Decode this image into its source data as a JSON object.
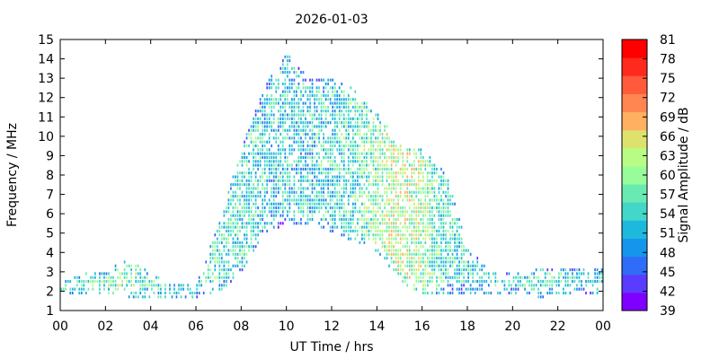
{
  "chart_data": {
    "type": "heatmap",
    "title": "2026-01-03",
    "xlabel": "UT Time / hrs",
    "ylabel": "Frequency / MHz",
    "xlim": [
      0,
      24
    ],
    "ylim": [
      1,
      15
    ],
    "x_ticks": [
      "00",
      "02",
      "04",
      "06",
      "08",
      "10",
      "12",
      "14",
      "16",
      "18",
      "20",
      "22",
      "00"
    ],
    "y_ticks": [
      "1",
      "2",
      "3",
      "4",
      "5",
      "6",
      "7",
      "8",
      "9",
      "10",
      "11",
      "12",
      "13",
      "14",
      "15"
    ],
    "colorbar": {
      "label": "Signal Amplitude / dB",
      "min": 39,
      "max": 81,
      "ticks": [
        "81",
        "78",
        "75",
        "72",
        "69",
        "66",
        "63",
        "60",
        "57",
        "54",
        "51",
        "48",
        "45",
        "42",
        "39"
      ],
      "colors": [
        "#8000ff",
        "#5a3cfe",
        "#2f6df8",
        "#1596ec",
        "#1cb9dd",
        "#42d7c8",
        "#6aeab3",
        "#97fc9a",
        "#b9fc84",
        "#dde26c",
        "#ffb061",
        "#ff8650",
        "#ff5a3c",
        "#ff2a1e",
        "#ff0000"
      ]
    },
    "detection_envelope": {
      "hours": [
        0,
        1,
        2,
        3,
        4,
        5,
        6,
        7,
        8,
        9,
        10,
        11,
        12,
        13,
        14,
        15,
        16,
        17,
        18,
        19,
        20,
        21,
        22,
        23,
        24
      ],
      "min_freq_mhz": [
        1.8,
        1.9,
        1.8,
        1.7,
        1.7,
        1.6,
        1.7,
        2.0,
        3.0,
        5.0,
        5.5,
        5.5,
        5.0,
        4.5,
        4.0,
        2.5,
        1.8,
        1.9,
        1.9,
        1.8,
        1.8,
        1.7,
        1.7,
        1.8,
        1.8
      ],
      "max_freq_mhz": [
        2.5,
        2.9,
        3.0,
        3.6,
        2.8,
        2.2,
        2.3,
        5.5,
        9.5,
        12.5,
        14.2,
        12.8,
        12.8,
        12.3,
        11.0,
        9.5,
        9.3,
        8.0,
        4.0,
        3.0,
        3.0,
        3.0,
        3.2,
        3.2,
        3.0
      ],
      "typical_amplitude_db": [
        57,
        57,
        58,
        59,
        57,
        56,
        54,
        56,
        55,
        53,
        52,
        53,
        54,
        56,
        60,
        63,
        60,
        55,
        54,
        54,
        54,
        55,
        55,
        54,
        54
      ]
    }
  }
}
